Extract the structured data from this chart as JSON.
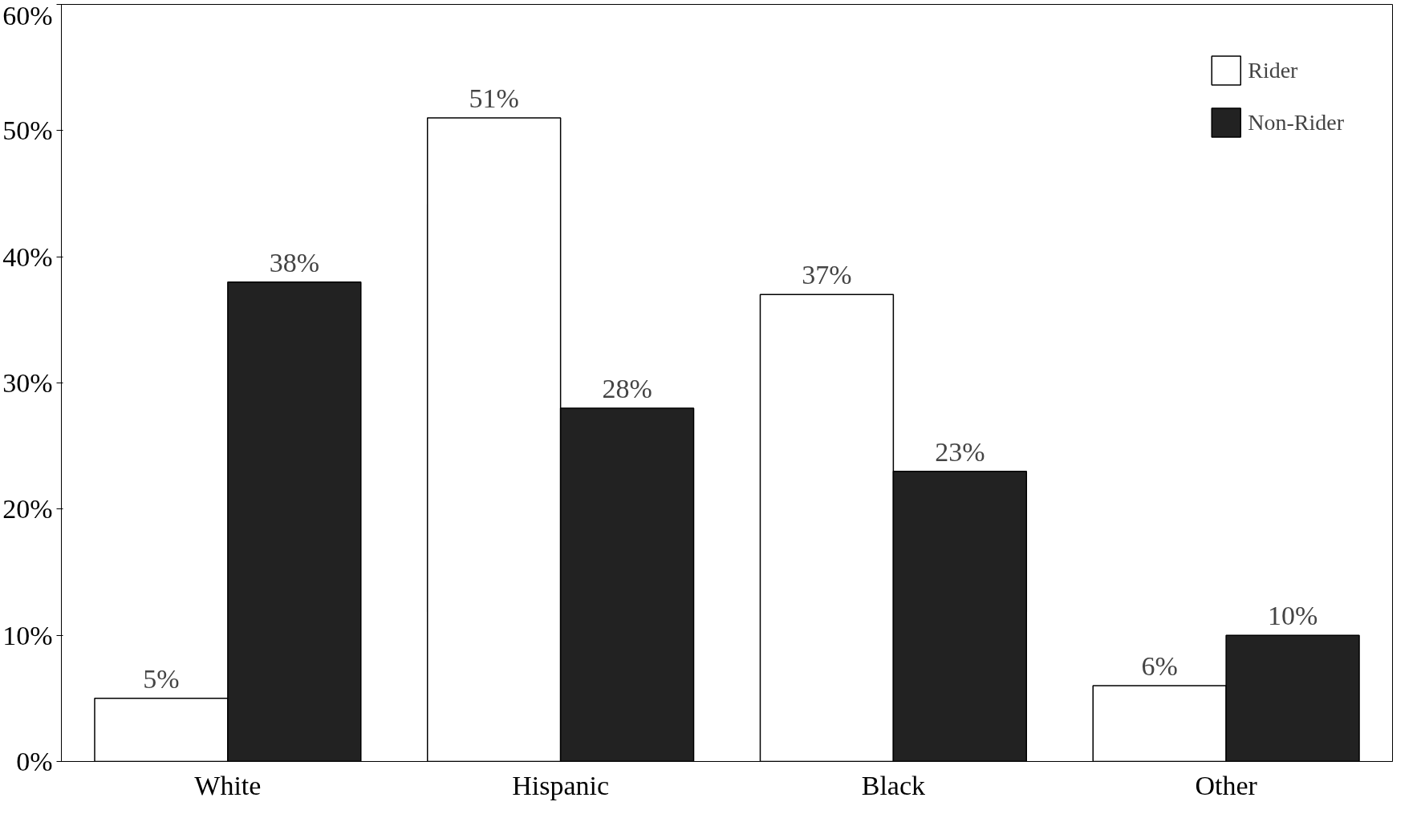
{
  "chart_data": {
    "type": "bar",
    "categories": [
      "White",
      "Hispanic",
      "Black",
      "Other"
    ],
    "series": [
      {
        "name": "Rider",
        "color": "#ffffff",
        "values": [
          5,
          51,
          37,
          6
        ],
        "value_labels": [
          "5%",
          "51%",
          "37%",
          "6%"
        ]
      },
      {
        "name": "Non-Rider",
        "color": "#222222",
        "values": [
          38,
          28,
          23,
          10
        ],
        "value_labels": [
          "38%",
          "28%",
          "23%",
          "10%"
        ]
      }
    ],
    "ylim": [
      0,
      60
    ],
    "yticks": [
      {
        "value": 0,
        "label": "0%"
      },
      {
        "value": 10,
        "label": "10%"
      },
      {
        "value": 20,
        "label": "20%"
      },
      {
        "value": 30,
        "label": "30%"
      },
      {
        "value": 40,
        "label": "40%"
      },
      {
        "value": 50,
        "label": "50%"
      },
      {
        "value": 60,
        "label": "60%"
      }
    ],
    "grid": false,
    "legend": "top right"
  }
}
